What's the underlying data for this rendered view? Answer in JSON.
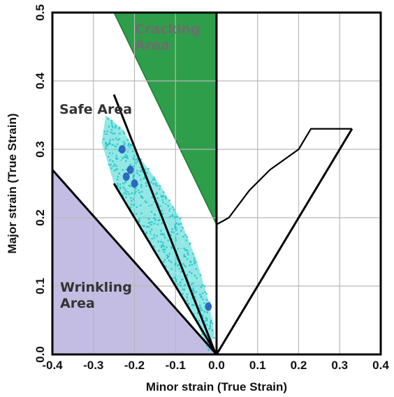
{
  "chart_data": {
    "type": "scatter",
    "title": "",
    "xlabel": "Minor strain (True Strain)",
    "ylabel": "Major strain (True Strain)",
    "xlim": [
      -0.4,
      0.4
    ],
    "ylim": [
      0.0,
      0.5
    ],
    "x_ticks": [
      "-0.4",
      "-0.3",
      "-0.2",
      "-0.1",
      "0.0",
      "0.1",
      "0.2",
      "0.3",
      "0.4"
    ],
    "y_ticks": [
      "0.0",
      "0.1",
      "0.2",
      "0.3",
      "0.4",
      "0.5"
    ],
    "grid": true,
    "colors": {
      "cracking": "#2e9e4a",
      "cracking_dark": "#1f7a34",
      "wrinkling": "#c3bde3",
      "safe_points": "#39d3d0",
      "safe_points_dark": "#1e54b8",
      "lines": "#000000",
      "grid": "#b8b8b8"
    },
    "regions": {
      "cracking": {
        "label_lines": [
          "Cracking",
          "Area"
        ],
        "label_color": "#6d6d6d",
        "polygon": [
          [
            -0.25,
            0.5
          ],
          [
            0.0,
            0.5
          ],
          [
            0.0,
            0.19
          ]
        ]
      },
      "safe": {
        "label_lines": [
          "Safe Area"
        ],
        "label_color": "#333333"
      },
      "wrinkling": {
        "label_lines": [
          "Wrinkling",
          "Area"
        ],
        "label_color": "#333333",
        "polygon": [
          [
            -0.4,
            0.0
          ],
          [
            0.0,
            0.0
          ],
          [
            -0.4,
            0.27
          ]
        ]
      }
    },
    "lines": [
      {
        "name": "wrinkling-boundary",
        "points": [
          [
            -0.4,
            0.27
          ],
          [
            0.0,
            0.0
          ]
        ]
      },
      {
        "name": "ray-steep",
        "points": [
          [
            -0.25,
            0.38
          ],
          [
            -0.005,
            0.005
          ]
        ]
      },
      {
        "name": "ray-mid",
        "points": [
          [
            -0.25,
            0.25
          ],
          [
            0.0,
            0.0
          ]
        ]
      },
      {
        "name": "ray-right",
        "points": [
          [
            0.0,
            0.0
          ],
          [
            0.33,
            0.33
          ]
        ]
      },
      {
        "name": "flc-curve",
        "points": [
          [
            0.0,
            0.19
          ],
          [
            0.03,
            0.2
          ],
          [
            0.08,
            0.24
          ],
          [
            0.13,
            0.27
          ],
          [
            0.2,
            0.3
          ],
          [
            0.23,
            0.33
          ],
          [
            0.33,
            0.33
          ]
        ]
      },
      {
        "name": "vertical-zero",
        "points": [
          [
            0.0,
            0.0
          ],
          [
            0.0,
            0.5
          ]
        ]
      }
    ],
    "safe_cloud": [
      [
        -0.27,
        0.35
      ],
      [
        -0.23,
        0.33
      ],
      [
        -0.19,
        0.29
      ],
      [
        -0.14,
        0.25
      ],
      [
        -0.09,
        0.2
      ],
      [
        -0.05,
        0.14
      ],
      [
        -0.02,
        0.08
      ],
      [
        -0.005,
        0.03
      ],
      [
        -0.02,
        0.005
      ],
      [
        -0.05,
        0.05
      ],
      [
        -0.1,
        0.1
      ],
      [
        -0.16,
        0.16
      ],
      [
        -0.21,
        0.21
      ],
      [
        -0.25,
        0.25
      ],
      [
        -0.28,
        0.31
      ]
    ],
    "dense_spots": [
      [
        -0.02,
        0.07
      ],
      [
        -0.2,
        0.25
      ],
      [
        -0.21,
        0.27
      ],
      [
        -0.22,
        0.26
      ],
      [
        -0.23,
        0.3
      ]
    ]
  }
}
